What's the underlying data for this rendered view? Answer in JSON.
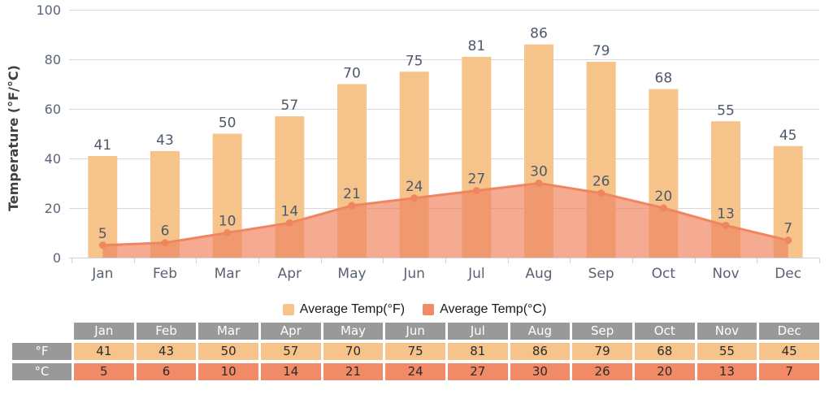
{
  "chart_data": {
    "type": "bar+area",
    "title": "",
    "xlabel": "",
    "ylabel": "Temperature (°F/°C)",
    "ylim": [
      0,
      100
    ],
    "yticks": [
      0,
      20,
      40,
      60,
      80,
      100
    ],
    "grid": true,
    "legend_position": "bottom",
    "categories": [
      "Jan",
      "Feb",
      "Mar",
      "Apr",
      "May",
      "Jun",
      "Jul",
      "Aug",
      "Sep",
      "Oct",
      "Nov",
      "Dec"
    ],
    "series": [
      {
        "name": "Average Temp(°F)",
        "type": "bar",
        "color": "#F6C38A",
        "swatch_color": "#F6C38A",
        "values": [
          41,
          43,
          50,
          57,
          70,
          75,
          81,
          86,
          79,
          68,
          55,
          45
        ]
      },
      {
        "name": "Average Temp(°C)",
        "type": "area",
        "color": "#EF8660",
        "fill": "rgba(239,135,98,0.7)",
        "swatch_color": "#F08A67",
        "values": [
          5,
          6,
          10,
          14,
          21,
          24,
          27,
          30,
          26,
          20,
          13,
          7
        ]
      }
    ],
    "axis_line_color": "#C9D4E8",
    "gridline_color": "#D8D8D8"
  },
  "table": {
    "corner_label": "",
    "header_color": "#999999",
    "rows": [
      {
        "label": "°F",
        "series": 0
      },
      {
        "label": "°C",
        "series": 1
      }
    ]
  }
}
